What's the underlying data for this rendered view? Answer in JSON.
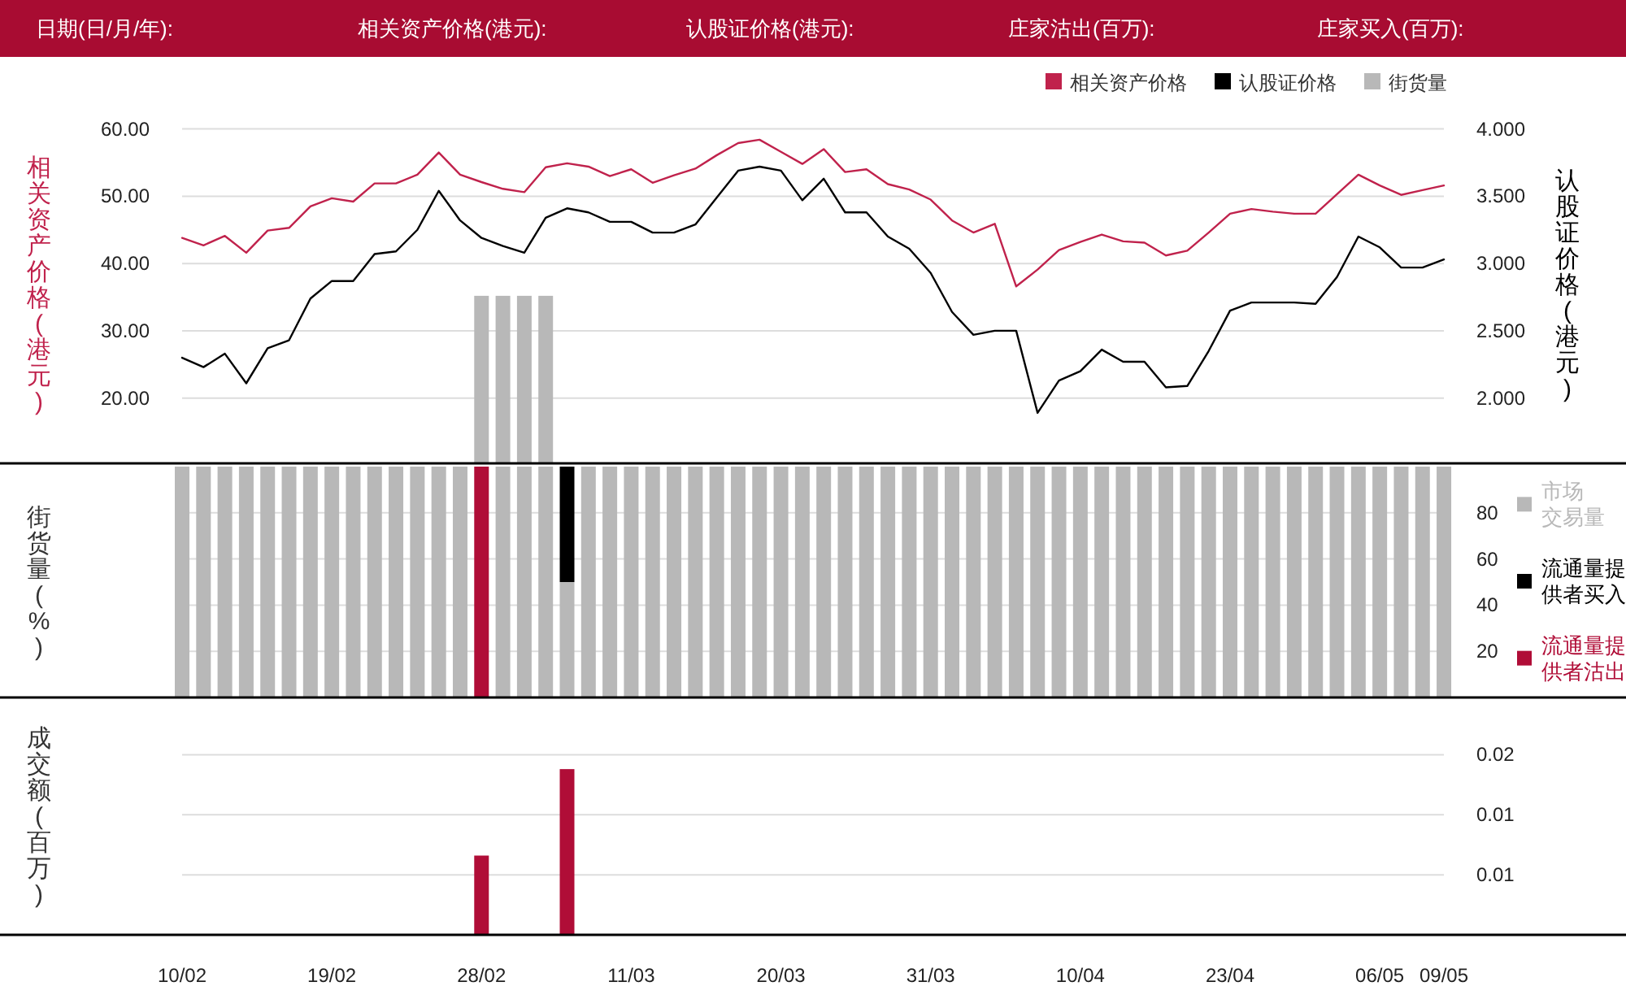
{
  "chart_data": [
    {
      "type": "line",
      "annotations": [
        "日期(日/月/年):",
        "相关资产价格(港元):",
        "认股证价格(港元):",
        "庄家沽出(百万):",
        "庄家买入(百万):"
      ],
      "ylabel": "相关资产价格(港元)",
      "y2label": "认股证价格(港元)",
      "categories": [
        null,
        null,
        null,
        null,
        null,
        null,
        null,
        null,
        null,
        null,
        null,
        null,
        null,
        null,
        null,
        null,
        null,
        null,
        null,
        null,
        null,
        null,
        null,
        null,
        null,
        null,
        null,
        null,
        null,
        null,
        null,
        null,
        null,
        null,
        null,
        null,
        null,
        null,
        null,
        null,
        null,
        null,
        null,
        null,
        null,
        null,
        null,
        null,
        null,
        null,
        null,
        null,
        null,
        null,
        null,
        null,
        null,
        null,
        null,
        null
      ],
      "ylim": [
        10.3,
        60
      ],
      "yticks": [
        {
          "value": 20,
          "label": "20.00"
        },
        {
          "value": 30,
          "label": "30.00"
        },
        {
          "value": 40,
          "label": "40.00"
        },
        {
          "value": 50,
          "label": "50.00"
        },
        {
          "value": 60,
          "label": "60.00"
        }
      ],
      "y2lim": [
        1.515,
        4.0
      ],
      "y2ticks": [
        {
          "value": 2,
          "label": "2.000"
        },
        {
          "value": 2.5,
          "label": "2.500"
        },
        {
          "value": 3,
          "label": "3.000"
        },
        {
          "value": 3.5,
          "label": "3.500"
        },
        {
          "value": 4,
          "label": "4.000"
        }
      ],
      "grid": "y",
      "legend": "top right",
      "tick_labels": "y",
      "series": [
        {
          "name": "相关资产价格",
          "color": "#c0224c",
          "values": [
            43.8,
            42.7,
            44.1,
            41.6,
            44.9,
            45.3,
            48.5,
            49.7,
            49.2,
            51.9,
            51.9,
            53.2,
            56.5,
            53.2,
            52.1,
            51.1,
            50.6,
            54.3,
            54.9,
            54.4,
            53.0,
            54.0,
            52.0,
            53.1,
            54.1,
            56.1,
            57.9,
            58.4,
            56.6,
            54.8,
            57.0,
            53.6,
            54.0,
            51.8,
            51.0,
            49.5,
            46.4,
            44.6,
            45.9,
            36.6,
            39.1,
            42.0,
            43.2,
            44.3,
            43.3,
            43.1,
            41.2,
            41.9,
            44.6,
            47.4,
            48.1,
            47.7,
            47.4,
            47.4,
            50.3,
            53.2,
            51.6,
            50.2,
            50.9,
            51.6
          ]
        },
        {
          "name": "认股证价格",
          "color": "#000000",
          "axis": "y2",
          "values": [
            2.3,
            2.23,
            2.33,
            2.11,
            2.37,
            2.43,
            2.74,
            2.87,
            2.87,
            3.07,
            3.09,
            3.25,
            3.54,
            3.32,
            3.19,
            3.13,
            3.08,
            3.34,
            3.41,
            3.38,
            3.31,
            3.31,
            3.23,
            3.23,
            3.29,
            3.49,
            3.69,
            3.72,
            3.69,
            3.47,
            3.63,
            3.38,
            3.38,
            3.2,
            3.11,
            2.93,
            2.64,
            2.47,
            2.5,
            2.5,
            1.89,
            2.13,
            2.2,
            2.36,
            2.27,
            2.27,
            2.08,
            2.09,
            2.35,
            2.65,
            2.71,
            2.71,
            2.71,
            2.7,
            2.9,
            3.2,
            3.12,
            2.97,
            2.97,
            3.03
          ]
        },
        {
          "name": "街货量",
          "type": "bar",
          "color": "#b8b8b8",
          "values": [
            null,
            null,
            null,
            null,
            null,
            null,
            null,
            null,
            null,
            null,
            null,
            null,
            null,
            null,
            35.2,
            35.2,
            35.2,
            35.2,
            null,
            null,
            null,
            null,
            null,
            null,
            null,
            null,
            null,
            null,
            null,
            null,
            null,
            null,
            null,
            null,
            null,
            null,
            null,
            null,
            null,
            null,
            null,
            null,
            null,
            null,
            null,
            null,
            null,
            null,
            null,
            null,
            null,
            null,
            null,
            null,
            null,
            null,
            null,
            null,
            null,
            null
          ]
        }
      ]
    },
    {
      "type": "bar",
      "stacked": true,
      "ylabel": "街货量(%)",
      "categories": [
        null,
        null,
        null,
        null,
        null,
        null,
        null,
        null,
        null,
        null,
        null,
        null,
        null,
        null,
        null,
        null,
        null,
        null,
        null,
        null,
        null,
        null,
        null,
        null,
        null,
        null,
        null,
        null,
        null,
        null,
        null,
        null,
        null,
        null,
        null,
        null,
        null,
        null,
        null,
        null,
        null,
        null,
        null,
        null,
        null,
        null,
        null,
        null,
        null,
        null,
        null,
        null,
        null,
        null,
        null,
        null,
        null,
        null,
        null,
        null
      ],
      "ylim": [
        0,
        100
      ],
      "yticks": [
        20,
        40,
        60,
        80
      ],
      "grid": "y",
      "legend": "right",
      "tick_labels": "y",
      "series": [
        {
          "name": "市场交易量",
          "color": "#b8b8b8",
          "values": [
            100,
            100,
            100,
            100,
            100,
            100,
            100,
            100,
            100,
            100,
            100,
            100,
            100,
            100,
            0,
            100,
            100,
            100,
            50,
            100,
            100,
            100,
            100,
            100,
            100,
            100,
            100,
            100,
            100,
            100,
            100,
            100,
            100,
            100,
            100,
            100,
            100,
            100,
            100,
            100,
            100,
            100,
            100,
            100,
            100,
            100,
            100,
            100,
            100,
            100,
            100,
            100,
            100,
            100,
            100,
            100,
            100,
            100,
            100,
            100
          ]
        },
        {
          "name": "流通量提供者买入",
          "color": "#000000",
          "values": [
            0,
            0,
            0,
            0,
            0,
            0,
            0,
            0,
            0,
            0,
            0,
            0,
            0,
            0,
            0,
            0,
            0,
            0,
            50,
            0,
            0,
            0,
            0,
            0,
            0,
            0,
            0,
            0,
            0,
            0,
            0,
            0,
            0,
            0,
            0,
            0,
            0,
            0,
            0,
            0,
            0,
            0,
            0,
            0,
            0,
            0,
            0,
            0,
            0,
            0,
            0,
            0,
            0,
            0,
            0,
            0,
            0,
            0,
            0,
            0
          ]
        },
        {
          "name": "流通量提供者沽出",
          "color": "#b00d37",
          "values": [
            0,
            0,
            0,
            0,
            0,
            0,
            0,
            0,
            0,
            0,
            0,
            0,
            0,
            0,
            100,
            0,
            0,
            0,
            0,
            0,
            0,
            0,
            0,
            0,
            0,
            0,
            0,
            0,
            0,
            0,
            0,
            0,
            0,
            0,
            0,
            0,
            0,
            0,
            0,
            0,
            0,
            0,
            0,
            0,
            0,
            0,
            0,
            0,
            0,
            0,
            0,
            0,
            0,
            0,
            0,
            0,
            0,
            0,
            0,
            0
          ]
        }
      ]
    },
    {
      "type": "bar",
      "ylabel": "成交额(百万)",
      "categories": [
        "10/02",
        null,
        null,
        null,
        null,
        null,
        null,
        "19/02",
        null,
        null,
        null,
        null,
        null,
        null,
        "28/02",
        null,
        null,
        null,
        null,
        null,
        null,
        "11/03",
        null,
        null,
        null,
        null,
        null,
        null,
        "20/03",
        null,
        null,
        null,
        null,
        null,
        null,
        "31/03",
        null,
        null,
        null,
        null,
        null,
        null,
        "10/04",
        null,
        null,
        null,
        null,
        null,
        null,
        "23/04",
        null,
        null,
        null,
        null,
        null,
        null,
        "06/05",
        null,
        null,
        "09/05"
      ],
      "ylim": [
        0,
        0.015
      ],
      "yticks": [
        {
          "value": 0.005,
          "label": "0.01"
        },
        {
          "value": 0.01,
          "label": "0.01"
        },
        {
          "value": 0.015,
          "label": "0.02"
        }
      ],
      "grid": "y",
      "series": [
        {
          "color": "#b00d37",
          "values": [
            0,
            0,
            0,
            0,
            0,
            0,
            0,
            0,
            0,
            0,
            0,
            0,
            0,
            0,
            0.0066,
            0,
            0,
            0,
            0.0138,
            0,
            0,
            0,
            0,
            0,
            0,
            0,
            0,
            0,
            0,
            0,
            0,
            0,
            0,
            0,
            0,
            0,
            0,
            0,
            0,
            0,
            0,
            0,
            0,
            0,
            0,
            0,
            0,
            0,
            0,
            0,
            0,
            0,
            0,
            0,
            0,
            0,
            0,
            0,
            0,
            0
          ]
        }
      ]
    }
  ]
}
